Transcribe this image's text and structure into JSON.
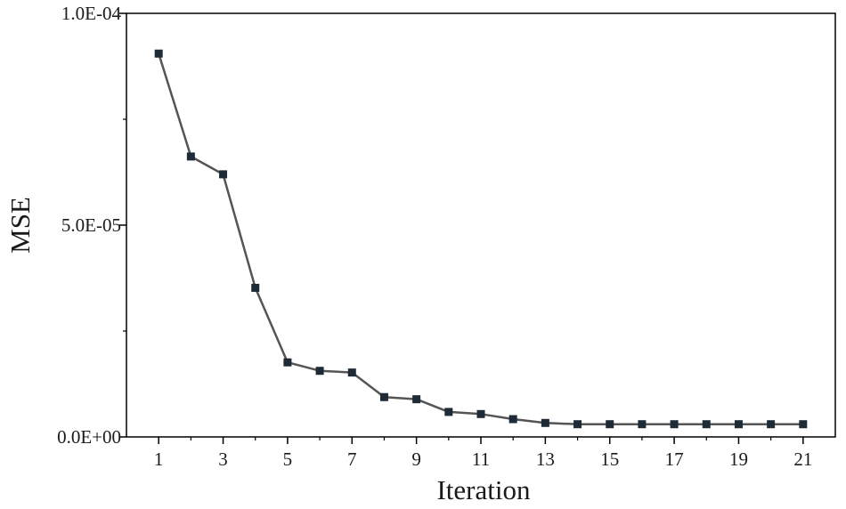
{
  "chart_data": {
    "type": "line",
    "xlabel": "Iteration",
    "ylabel": "MSE",
    "xlim": [
      0,
      22
    ],
    "ylim": [
      0,
      0.0001
    ],
    "x_ticks": [
      1,
      3,
      5,
      7,
      9,
      11,
      13,
      15,
      17,
      19,
      21
    ],
    "x_tick_labels": [
      "1",
      "3",
      "5",
      "7",
      "9",
      "11",
      "13",
      "15",
      "17",
      "19",
      "21"
    ],
    "y_ticks": [
      0,
      5e-05,
      0.0001
    ],
    "y_tick_labels": [
      "0.0E+00",
      "5.0E-05",
      "1.0E-04"
    ],
    "y_minor_ticks": [
      2.5e-05,
      7.5e-05
    ],
    "grid": false,
    "legend": "none",
    "marker": "square",
    "series": [
      {
        "x": [
          1,
          2,
          3,
          4,
          5,
          6,
          7,
          8,
          9,
          10,
          11,
          12,
          13,
          14,
          15,
          16,
          17,
          18,
          19,
          20,
          21
        ],
        "values": [
          9.05e-05,
          6.62e-05,
          6.2e-05,
          3.52e-05,
          1.76e-05,
          1.56e-05,
          1.52e-05,
          9.4e-06,
          8.9e-06,
          5.9e-06,
          5.4e-06,
          4.2e-06,
          3.3e-06,
          3e-06,
          3e-06,
          3e-06,
          3e-06,
          3e-06,
          3e-06,
          3e-06,
          3e-06
        ]
      }
    ],
    "colors": {
      "line": "#555555",
      "marker": "#1e2a36",
      "axis": "#000000"
    }
  }
}
